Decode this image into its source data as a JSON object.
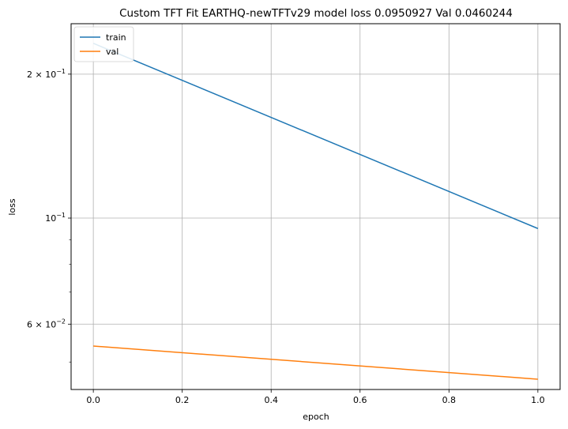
{
  "chart_data": {
    "type": "line",
    "title": "Custom TFT Fit EARTHQ-newTFTv29 model loss 0.0950927 Val 0.0460244",
    "xlabel": "epoch",
    "ylabel": "loss",
    "xlim": [
      -0.05,
      1.05
    ],
    "ylim": [
      0.0438,
      0.255
    ],
    "yscale": "log",
    "grid": true,
    "legend_position": "top-left",
    "x": [
      0,
      1
    ],
    "x_ticks": [
      0.0,
      0.2,
      0.4,
      0.6,
      0.8,
      1.0
    ],
    "x_tick_labels": [
      "0.0",
      "0.2",
      "0.4",
      "0.6",
      "0.8",
      "1.0"
    ],
    "y_major_ticks": [
      {
        "value": 0.06,
        "base": "6",
        "mant": "10",
        "exp": "−2"
      },
      {
        "value": 0.1,
        "base": "",
        "mant": "10",
        "exp": "−1"
      },
      {
        "value": 0.2,
        "base": "2",
        "mant": "10",
        "exp": "−1"
      }
    ],
    "y_minor_ticks": [
      0.05,
      0.07,
      0.08,
      0.09,
      0.3
    ],
    "series": [
      {
        "name": "train",
        "color": "#1f77b4",
        "values": [
          0.232,
          0.0950927
        ]
      },
      {
        "name": "val",
        "color": "#ff7f0e",
        "values": [
          0.054,
          0.0460244
        ]
      }
    ]
  }
}
